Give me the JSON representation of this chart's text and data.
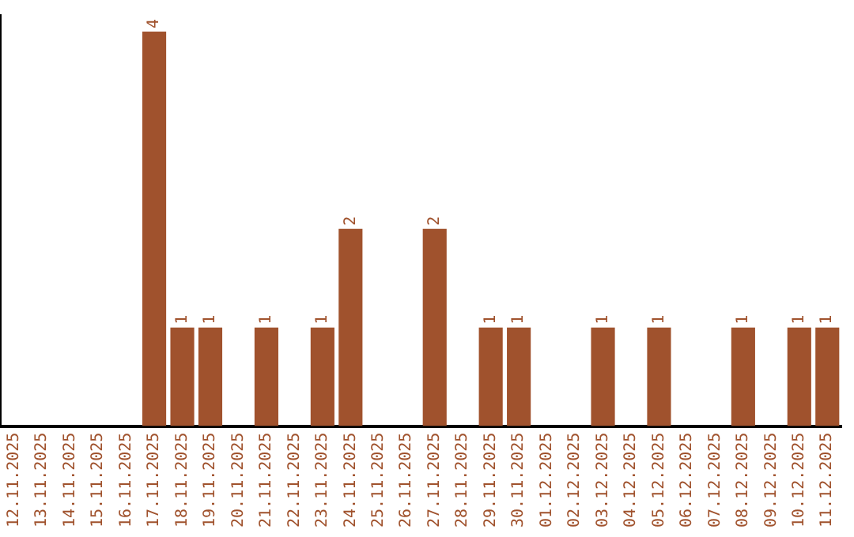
{
  "chart_data": {
    "type": "bar",
    "categories": [
      "12.11.2025",
      "13.11.2025",
      "14.11.2025",
      "15.11.2025",
      "16.11.2025",
      "17.11.2025",
      "18.11.2025",
      "19.11.2025",
      "20.11.2025",
      "21.11.2025",
      "22.11.2025",
      "23.11.2025",
      "24.11.2025",
      "25.11.2025",
      "26.11.2025",
      "27.11.2025",
      "28.11.2025",
      "29.11.2025",
      "30.11.2025",
      "01.12.2025",
      "02.12.2025",
      "03.12.2025",
      "04.12.2025",
      "05.12.2025",
      "06.12.2025",
      "07.12.2025",
      "08.12.2025",
      "09.12.2025",
      "10.12.2025",
      "11.12.2025"
    ],
    "values": [
      0,
      0,
      0,
      0,
      0,
      4,
      1,
      1,
      0,
      1,
      0,
      1,
      2,
      0,
      0,
      2,
      0,
      1,
      1,
      0,
      0,
      1,
      0,
      1,
      0,
      0,
      1,
      0,
      1,
      1
    ],
    "value_labels": [
      null,
      null,
      null,
      null,
      null,
      "4",
      "1",
      "1",
      null,
      "1",
      null,
      "1",
      "2",
      null,
      null,
      "2",
      null,
      "1",
      "1",
      null,
      null,
      "1",
      null,
      "1",
      null,
      null,
      "1",
      null,
      "1",
      "1"
    ],
    "color": "#a0522d",
    "ylim": [
      0,
      4.16
    ],
    "tick_labels": "x",
    "grid": false,
    "legend": false
  }
}
